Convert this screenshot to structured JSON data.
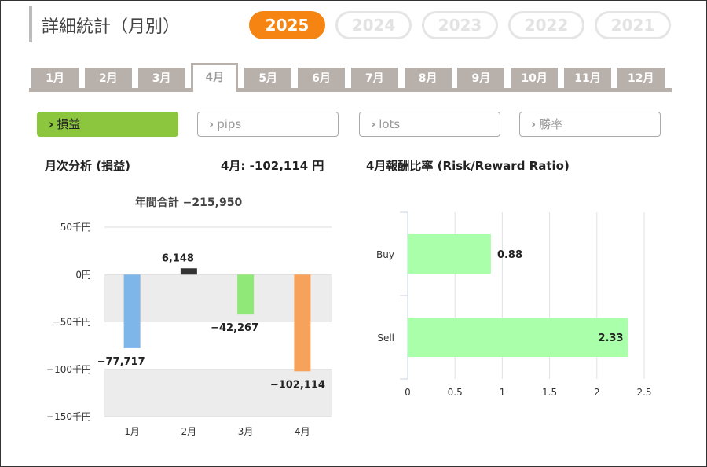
{
  "page": {
    "title": "詳細統計（月別）"
  },
  "years": [
    {
      "label": "2025",
      "active": true
    },
    {
      "label": "2024",
      "active": false
    },
    {
      "label": "2023",
      "active": false
    },
    {
      "label": "2022",
      "active": false
    },
    {
      "label": "2021",
      "active": false
    }
  ],
  "months": [
    {
      "label": "1月",
      "active": false
    },
    {
      "label": "2月",
      "active": false
    },
    {
      "label": "3月",
      "active": false
    },
    {
      "label": "4月",
      "active": true
    },
    {
      "label": "5月",
      "active": false
    },
    {
      "label": "6月",
      "active": false
    },
    {
      "label": "7月",
      "active": false
    },
    {
      "label": "8月",
      "active": false
    },
    {
      "label": "9月",
      "active": false
    },
    {
      "label": "10月",
      "active": false
    },
    {
      "label": "11月",
      "active": false
    },
    {
      "label": "12月",
      "active": false
    }
  ],
  "metrics": [
    {
      "label": "損益",
      "active": true
    },
    {
      "label": "pips",
      "active": false
    },
    {
      "label": "lots",
      "active": false
    },
    {
      "label": "勝率",
      "active": false
    }
  ],
  "monthly_analysis": {
    "heading": "月次分析 (損益)",
    "month_summary": "4月:  -102,114 円",
    "annual_total": "年間合計 −215,950"
  },
  "risk_reward": {
    "heading": "4月報酬比率 (Risk/Reward Ratio)"
  },
  "colors": {
    "accent_orange": "#f58413",
    "accent_green": "#8cc63f",
    "tab_gray": "#b8b0ab",
    "bar_jan": "#7eb6ea",
    "bar_feb": "#333333",
    "bar_mar": "#90e878",
    "bar_apr": "#f7a25a",
    "bar_rr": "#aaffaa"
  },
  "chart_data": [
    {
      "type": "bar",
      "categories": [
        "1月",
        "2月",
        "3月",
        "4月"
      ],
      "values": [
        -77717,
        6148,
        -42267,
        -102114
      ],
      "value_labels": [
        "−77,717",
        "6,148",
        "−42,267",
        "−102,114"
      ],
      "title": "年間合計 −215,950",
      "xlabel": "",
      "ylabel": "",
      "ylim": [
        -150000,
        50000
      ],
      "yticks": [
        50000,
        0,
        -50000,
        -100000,
        -150000
      ],
      "ytick_labels": [
        "50千円",
        "0円",
        "−50千円",
        "−100千円",
        "−150千円"
      ],
      "bar_colors": [
        "#7eb6ea",
        "#333333",
        "#90e878",
        "#f7a25a"
      ],
      "grid": true,
      "legend": "none"
    },
    {
      "type": "bar",
      "orientation": "horizontal",
      "categories": [
        "Buy",
        "Sell"
      ],
      "values": [
        0.88,
        2.33
      ],
      "value_labels": [
        "0.88",
        "2.33"
      ],
      "title": "4月報酬比率 (Risk/Reward Ratio)",
      "xlabel": "",
      "ylabel": "",
      "xlim": [
        0,
        2.5
      ],
      "xticks": [
        0,
        0.5,
        1,
        1.5,
        2,
        2.5
      ],
      "xtick_labels": [
        "0",
        "0.5",
        "1",
        "1.5",
        "2",
        "2.5"
      ],
      "bar_color": "#aaffaa",
      "grid": true,
      "legend": "none"
    }
  ]
}
